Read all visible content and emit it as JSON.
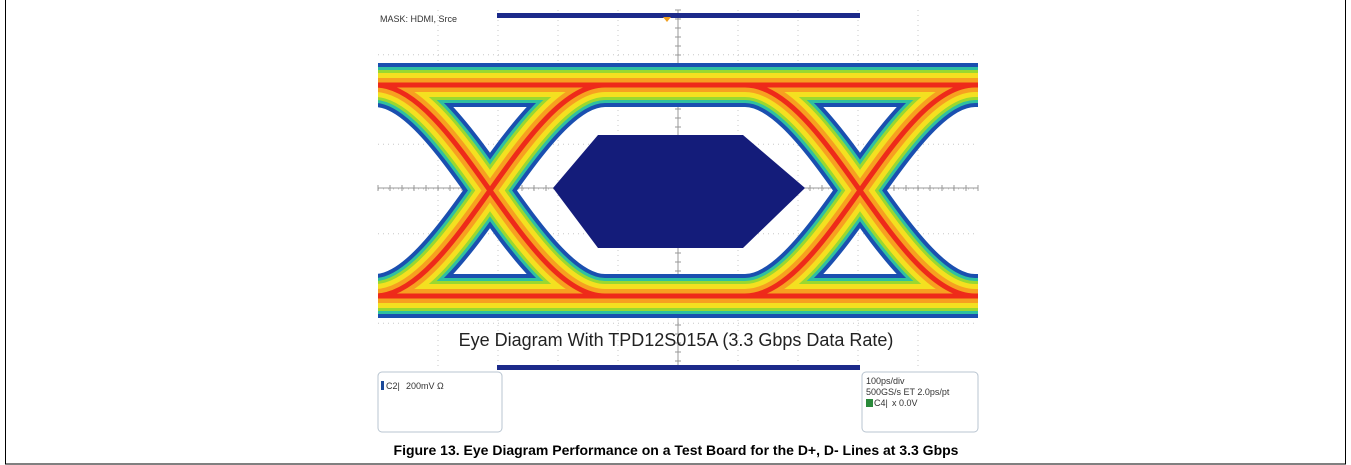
{
  "scope": {
    "mask_label": "MASK: HDMI, Srce",
    "overlay_title": "Eye Diagram With TPD12S015A (3.3 Gbps Data Rate)",
    "channel_panel": {
      "channel": "C2|",
      "scale": "200mV Ω"
    },
    "timebase_panel": {
      "horizontal": "100ps/div",
      "sampling": "500GS/s ET 2.0ps/pt",
      "trigger_channel": "C4|",
      "trigger_level": "x 0.0V"
    }
  },
  "caption": "Figure 13. Eye Diagram Performance on a Test Board for the D+, D- Lines at 3.3 Gbps"
}
